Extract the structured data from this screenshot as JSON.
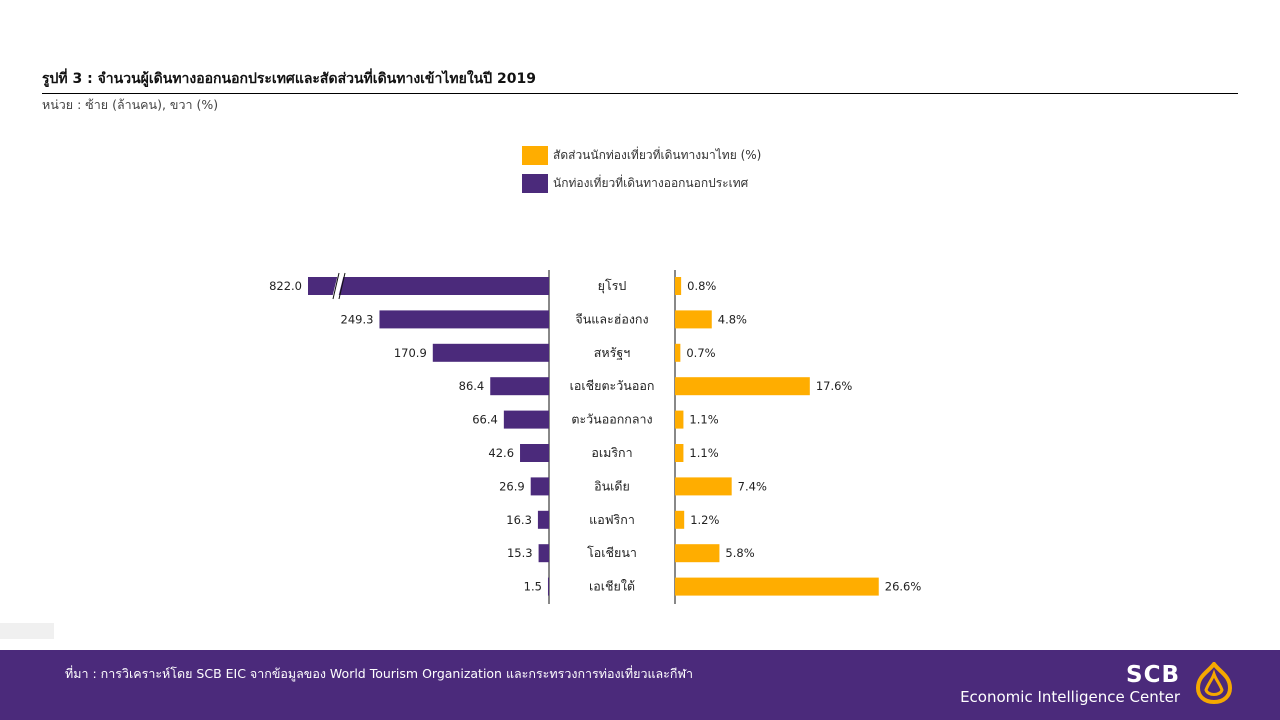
{
  "title": "รูปที่ 3 : จำนวนผู้เดินทางออกนอกประเทศและสัดส่วนที่เดินทางเข้าไทยในปี 2019",
  "subtitle": "หน่วย : ซ้าย (ล้านคน), ขวา (%)",
  "legend": [
    {
      "label": "สัดส่วนนักท่องเที่ยวที่เดินทางมาไทย (%)",
      "color": "#ffad00"
    },
    {
      "label": "นักท่องเที่ยวที่เดินทางออกนอกประเทศ",
      "color": "#4b2a7b"
    }
  ],
  "footer": {
    "source": "ที่มา : การวิเคราะห์โดย SCB EIC จากข้อมูลของ World Tourism Organization และกระทรวงการท่องเที่ยวและกีฬา",
    "brand_name": "SCB",
    "brand_sub": "Economic Intelligence Center"
  },
  "chart_data": {
    "type": "bar",
    "categories": [
      "ยุโรป",
      "จีนและฮ่องกง",
      "สหรัฐฯ",
      "เอเชียตะวันออก",
      "ตะวันออกกลาง",
      "อเมริกา",
      "อินเดีย",
      "แอฟริกา",
      "โอเชียนา",
      "เอเชียใต้"
    ],
    "series": [
      {
        "name": "นักท่องเที่ยวที่เดินทางออกนอกประเทศ",
        "values": [
          822.0,
          249.3,
          170.9,
          86.4,
          66.4,
          42.6,
          26.9,
          16.3,
          15.3,
          1.5
        ],
        "labels": [
          "822.0",
          "249.3",
          "170.9",
          "86.4",
          "66.4",
          "42.6",
          "26.9",
          "16.3",
          "15.3",
          "1.5"
        ],
        "color": "#4b2a7b",
        "side": "left",
        "axis_break": true
      },
      {
        "name": "สัดส่วนนักท่องเที่ยวที่เดินทางมาไทย (%)",
        "values": [
          0.8,
          4.8,
          0.7,
          17.6,
          1.1,
          1.1,
          7.4,
          1.2,
          5.8,
          26.6
        ],
        "labels": [
          "0.8%",
          "4.8%",
          "0.7%",
          "17.6%",
          "1.1%",
          "1.1%",
          "7.4%",
          "1.2%",
          "5.8%",
          "26.6%"
        ],
        "color": "#ffad00",
        "side": "right"
      }
    ],
    "gridlines": false,
    "legend_position": "top-center"
  }
}
